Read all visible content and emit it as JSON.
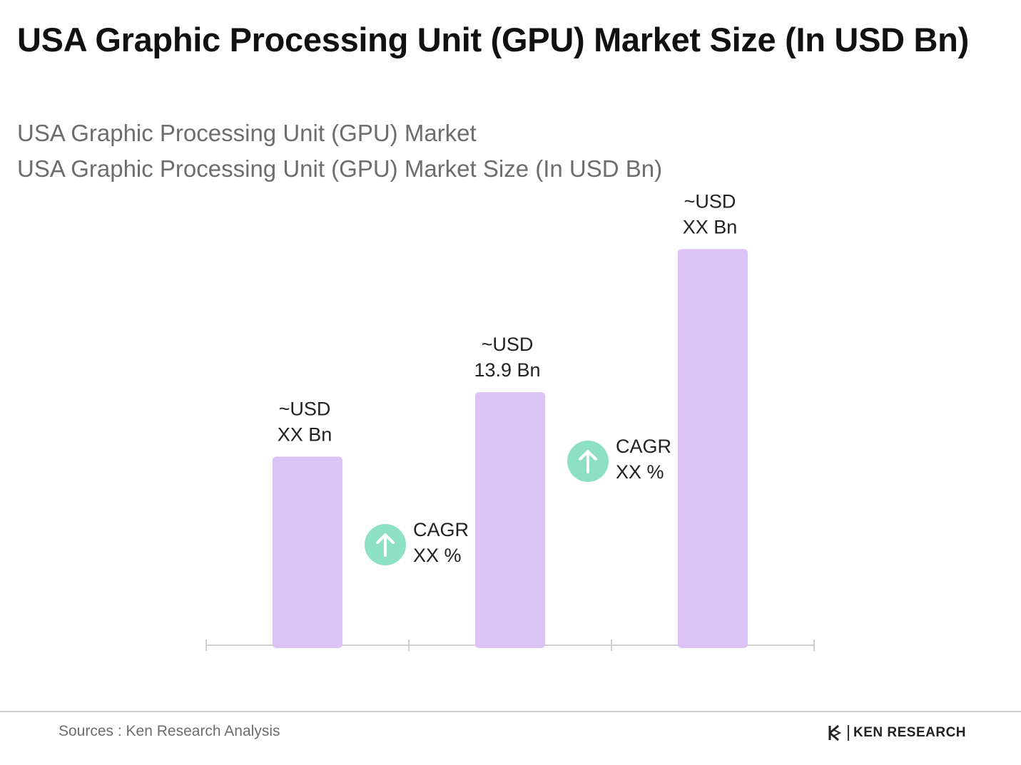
{
  "title": "USA Graphic Processing Unit (GPU) Market Size (In USD Bn)",
  "subtitle_1": "USA Graphic Processing Unit (GPU) Market",
  "subtitle_2": "USA Graphic Processing Unit (GPU) Market Size (In USD Bn)",
  "chart_data": {
    "type": "bar",
    "categories": [
      "",
      "",
      ""
    ],
    "values": [
      null,
      13.9,
      null
    ],
    "data_labels": [
      [
        "~USD",
        "XX Bn"
      ],
      [
        "~USD",
        "13.9 Bn"
      ],
      [
        "~USD",
        "XX Bn"
      ]
    ],
    "title": "USA Graphic Processing Unit (GPU) Market Size (In USD Bn)",
    "xlabel": "",
    "ylabel": "",
    "grid": false,
    "legend": "none",
    "bar_color": "#dcc3f5",
    "cagr_badges": [
      {
        "line1": "CAGR",
        "line2": "XX %",
        "icon": "arrow-up-icon",
        "color": "#8ee0c4"
      },
      {
        "line1": "CAGR",
        "line2": "XX %",
        "icon": "arrow-up-icon",
        "color": "#8ee0c4"
      }
    ]
  },
  "footer": {
    "source": "Sources : Ken Research Analysis",
    "brand": "KEN RESEARCH",
    "brand_icon": "ken-research-logo-icon"
  }
}
